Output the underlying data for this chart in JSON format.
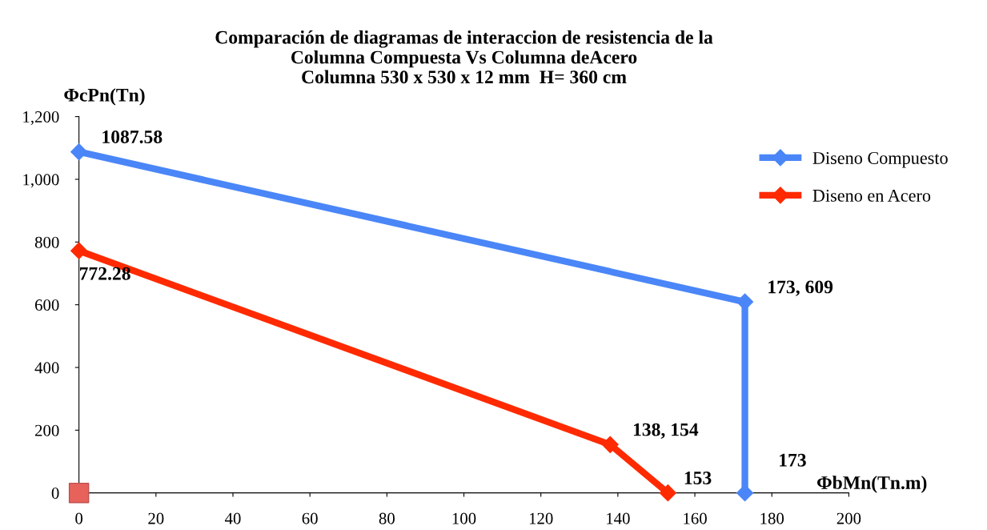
{
  "chart_data": {
    "type": "line",
    "title": "Comparación de diagramas de interaccion de resistencia de la\nColumna Compuesta Vs Columna deAcero\nColumna 530 x 530 x 12 mm  H= 360 cm",
    "xlabel": "ΦbMn(Tn.m)",
    "ylabel": "ΦcPn(Tn)",
    "series": [
      {
        "name": "Diseno Compuesto",
        "color": "#4a86f7",
        "marker": "diamond",
        "x": [
          0,
          173,
          173
        ],
        "values": [
          1087.58,
          609,
          0
        ],
        "value_labels": [
          "1087.58",
          "173, 609",
          null
        ]
      },
      {
        "name": "Diseno en Acero",
        "color": "#ff2a00",
        "marker": "diamond",
        "x": [
          0,
          138,
          153
        ],
        "values": [
          772.28,
          154,
          0
        ],
        "value_labels": [
          "772.28",
          "138, 154",
          null
        ]
      },
      {
        "type": "scatter",
        "color": "#e8625c",
        "marker": "square",
        "x": [
          0
        ],
        "values": [
          0
        ]
      }
    ],
    "xlim": [
      0,
      200
    ],
    "xticks": [
      0,
      20,
      40,
      60,
      80,
      100,
      120,
      140,
      160,
      180,
      200
    ],
    "ylim": [
      0,
      1200
    ],
    "yticks": [
      0,
      200,
      400,
      600,
      800,
      {
        "value": 1000,
        "label": "1,000"
      },
      {
        "value": 1200,
        "label": "1,200"
      }
    ],
    "annotations": [
      {
        "text": "173",
        "x": 173,
        "y": 0
      },
      {
        "text": "153",
        "x": 153,
        "y": 0
      }
    ],
    "grid": false,
    "legend": "top right",
    "line_style": "solid"
  }
}
